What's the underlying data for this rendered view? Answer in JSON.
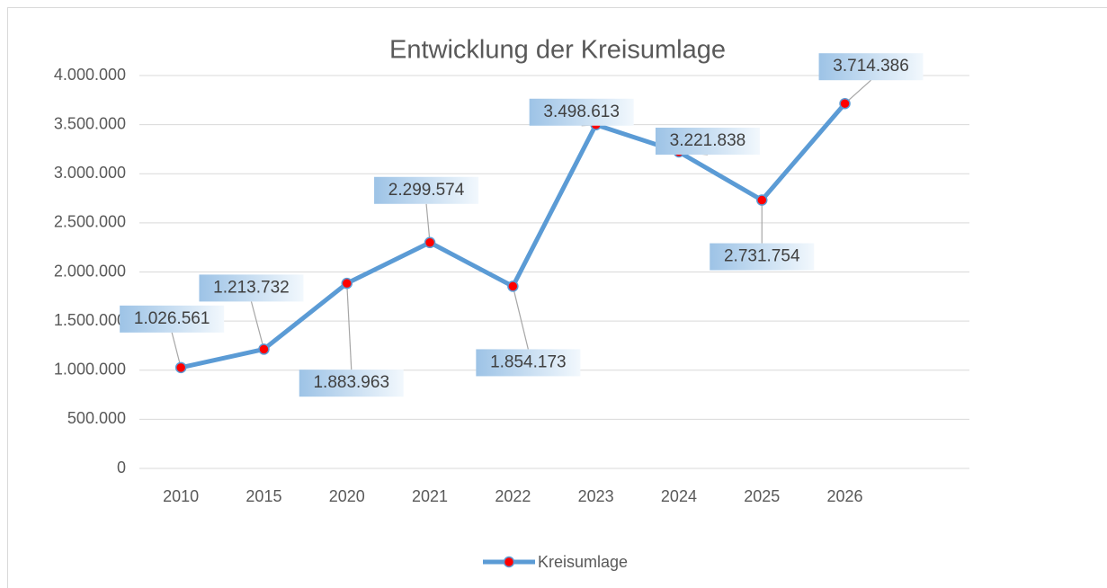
{
  "chart_data": {
    "type": "line",
    "title": "Entwicklung der Kreisumlage",
    "categories": [
      "2010",
      "2015",
      "2020",
      "2021",
      "2022",
      "2023",
      "2024",
      "2025",
      "2026",
      null
    ],
    "series": [
      {
        "name": "Kreisumlage",
        "color": "#5b9bd5",
        "marker_color": "#ff0000",
        "values": [
          1026561,
          1213732,
          1883963,
          2299574,
          1854173,
          3498613,
          3221838,
          2731754,
          3714386,
          null
        ],
        "value_labels": [
          "1.026.561",
          "1.213.732",
          "1.883.963",
          "2.299.574",
          "1.854.173",
          "3.498.613",
          "3.221.838",
          "2.731.754",
          "3.714.386",
          null
        ]
      }
    ],
    "ylim": [
      0,
      4000000
    ],
    "yticks": [
      0,
      {
        "value": 500000,
        "label": "500.000"
      },
      {
        "value": 1000000,
        "label": "1.000.000"
      },
      {
        "value": 1500000,
        "label": "1.500.000"
      },
      {
        "value": 2000000,
        "label": "2.000.000"
      },
      {
        "value": 2500000,
        "label": "2.500.000"
      },
      {
        "value": 3000000,
        "label": "3.000.000"
      },
      {
        "value": 3500000,
        "label": "3.500.000"
      },
      {
        "value": 4000000,
        "label": "4.000.000"
      }
    ],
    "grid": true,
    "legend": "bottom"
  }
}
